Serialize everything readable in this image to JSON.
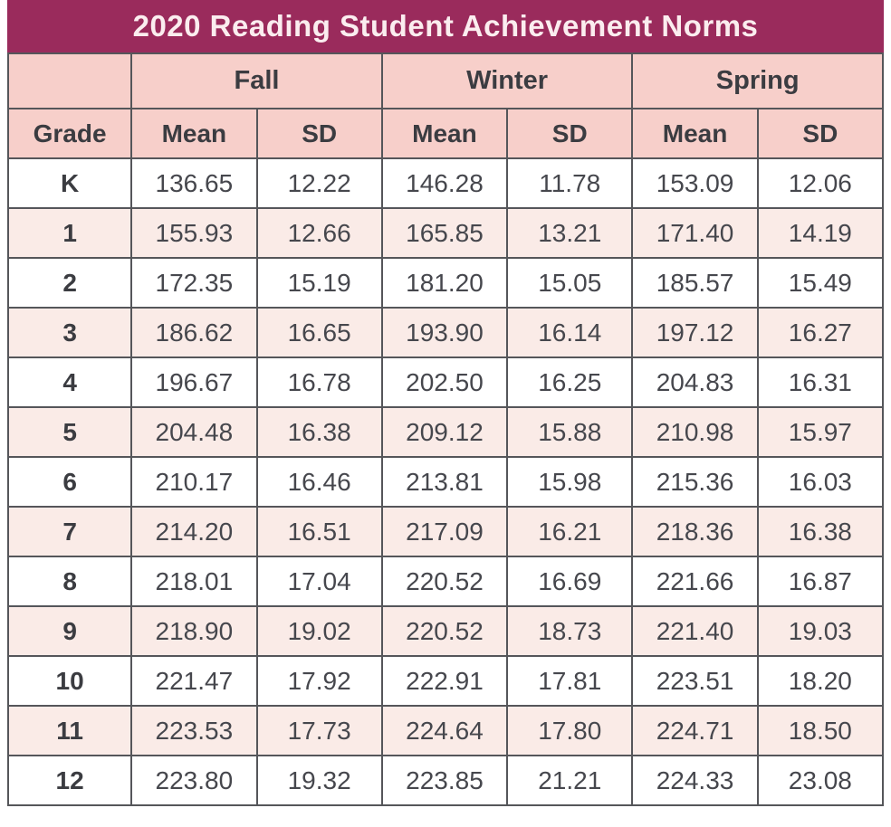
{
  "title": "2020 Reading Student Achievement Norms",
  "colors": {
    "title_bar_bg": "#9A2B5C",
    "title_text": "#FBEDEF",
    "header_row_bg": "#F7CFCA",
    "stripe_row_bg": "#FAEBE7",
    "header_text": "#3B3C41",
    "body_text": "#46474D",
    "border": "#55565A"
  },
  "table": {
    "corner_label": "",
    "group_headers": [
      {
        "label": "Fall",
        "colspan": 2
      },
      {
        "label": "Winter",
        "colspan": 2
      },
      {
        "label": "Spring",
        "colspan": 2
      }
    ],
    "column_headers": [
      "Grade",
      "Mean",
      "SD",
      "Mean",
      "SD",
      "Mean",
      "SD"
    ],
    "rows": [
      {
        "grade": "K",
        "values": [
          "136.65",
          "12.22",
          "146.28",
          "11.78",
          "153.09",
          "12.06"
        ]
      },
      {
        "grade": "1",
        "values": [
          "155.93",
          "12.66",
          "165.85",
          "13.21",
          "171.40",
          "14.19"
        ]
      },
      {
        "grade": "2",
        "values": [
          "172.35",
          "15.19",
          "181.20",
          "15.05",
          "185.57",
          "15.49"
        ]
      },
      {
        "grade": "3",
        "values": [
          "186.62",
          "16.65",
          "193.90",
          "16.14",
          "197.12",
          "16.27"
        ]
      },
      {
        "grade": "4",
        "values": [
          "196.67",
          "16.78",
          "202.50",
          "16.25",
          "204.83",
          "16.31"
        ]
      },
      {
        "grade": "5",
        "values": [
          "204.48",
          "16.38",
          "209.12",
          "15.88",
          "210.98",
          "15.97"
        ]
      },
      {
        "grade": "6",
        "values": [
          "210.17",
          "16.46",
          "213.81",
          "15.98",
          "215.36",
          "16.03"
        ]
      },
      {
        "grade": "7",
        "values": [
          "214.20",
          "16.51",
          "217.09",
          "16.21",
          "218.36",
          "16.38"
        ]
      },
      {
        "grade": "8",
        "values": [
          "218.01",
          "17.04",
          "220.52",
          "16.69",
          "221.66",
          "16.87"
        ]
      },
      {
        "grade": "9",
        "values": [
          "218.90",
          "19.02",
          "220.52",
          "18.73",
          "221.40",
          "19.03"
        ]
      },
      {
        "grade": "10",
        "values": [
          "221.47",
          "17.92",
          "222.91",
          "17.81",
          "223.51",
          "18.20"
        ]
      },
      {
        "grade": "11",
        "values": [
          "223.53",
          "17.73",
          "224.64",
          "17.80",
          "224.71",
          "18.50"
        ]
      },
      {
        "grade": "12",
        "values": [
          "223.80",
          "19.32",
          "223.85",
          "21.21",
          "224.33",
          "23.08"
        ]
      }
    ]
  },
  "chart_data": {
    "type": "table",
    "title": "2020 Reading Student Achievement Norms",
    "column_groups": [
      "Fall",
      "Winter",
      "Spring"
    ],
    "columns": [
      "Grade",
      "Fall Mean",
      "Fall SD",
      "Winter Mean",
      "Winter SD",
      "Spring Mean",
      "Spring SD"
    ],
    "rows": [
      [
        "K",
        136.65,
        12.22,
        146.28,
        11.78,
        153.09,
        12.06
      ],
      [
        "1",
        155.93,
        12.66,
        165.85,
        13.21,
        171.4,
        14.19
      ],
      [
        "2",
        172.35,
        15.19,
        181.2,
        15.05,
        185.57,
        15.49
      ],
      [
        "3",
        186.62,
        16.65,
        193.9,
        16.14,
        197.12,
        16.27
      ],
      [
        "4",
        196.67,
        16.78,
        202.5,
        16.25,
        204.83,
        16.31
      ],
      [
        "5",
        204.48,
        16.38,
        209.12,
        15.88,
        210.98,
        15.97
      ],
      [
        "6",
        210.17,
        16.46,
        213.81,
        15.98,
        215.36,
        16.03
      ],
      [
        "7",
        214.2,
        16.51,
        217.09,
        16.21,
        218.36,
        16.38
      ],
      [
        "8",
        218.01,
        17.04,
        220.52,
        16.69,
        221.66,
        16.87
      ],
      [
        "9",
        218.9,
        19.02,
        220.52,
        18.73,
        221.4,
        19.03
      ],
      [
        "10",
        221.47,
        17.92,
        222.91,
        17.81,
        223.51,
        18.2
      ],
      [
        "11",
        223.53,
        17.73,
        224.64,
        17.8,
        224.71,
        18.5
      ],
      [
        "12",
        223.8,
        19.32,
        223.85,
        21.21,
        224.33,
        23.08
      ]
    ]
  }
}
